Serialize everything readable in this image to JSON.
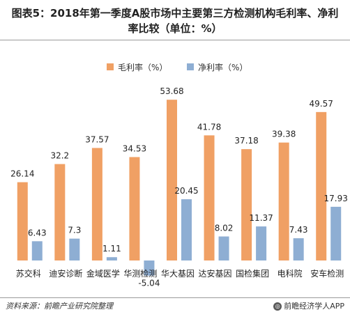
{
  "title": "图表5：2018年第一季度A股市场中主要第三方检测机构毛利率、净利率比较（单位：%）",
  "footer": {
    "source": "资料来源：前瞻产业研究院整理",
    "brand": "前瞻经济学人APP",
    "brand_icon": "logo-icon"
  },
  "colors": {
    "gross": "#f0a064",
    "net": "#8eaed3"
  },
  "chart_data": {
    "type": "bar",
    "title": "图表5：2018年第一季度A股市场中主要第三方检测机构毛利率、净利率比较（单位：%）",
    "categories": [
      "苏交科",
      "迪安诊断",
      "金域医学",
      "华测检测",
      "华大基因",
      "达安基因",
      "国检集团",
      "电科院",
      "安车检测"
    ],
    "series": [
      {
        "name": "毛利率（%）",
        "values": [
          26.14,
          32.2,
          37.57,
          34.53,
          53.68,
          41.78,
          37.18,
          39.38,
          49.57
        ]
      },
      {
        "name": "净利率（%）",
        "values": [
          6.43,
          7.3,
          1.11,
          -5.04,
          20.45,
          8.02,
          11.37,
          7.43,
          17.93
        ]
      }
    ],
    "value_labels": [
      [
        "26.14",
        "32.2",
        "37.57",
        "34.53",
        "53.68",
        "41.78",
        "37.18",
        "39.38",
        "49.57"
      ],
      [
        "6.43",
        "7.3",
        "1.11",
        "-5.04",
        "20.45",
        "8.02",
        "11.37",
        "7.43",
        "17.93"
      ]
    ],
    "ylim": [
      -6,
      56
    ],
    "grid": false,
    "legend": "top-center"
  }
}
